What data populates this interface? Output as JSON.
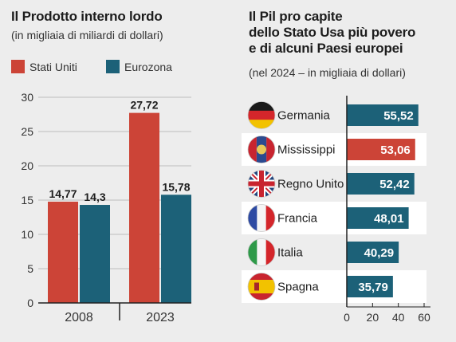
{
  "colors": {
    "usa": "#cc4437",
    "euro": "#1c6178",
    "background": "#ededed",
    "row_highlight": "#ffffff"
  },
  "chart_data": [
    {
      "type": "bar",
      "title": "Il Prodotto interno lordo",
      "subtitle": "(in migliaia di miliardi di dollari)",
      "categories": [
        "2008",
        "2023"
      ],
      "series": [
        {
          "name": "Stati Uniti",
          "values": [
            14.77,
            27.72
          ],
          "labels": [
            "14,77",
            "27,72"
          ]
        },
        {
          "name": "Eurozona",
          "values": [
            14.3,
            15.78
          ],
          "labels": [
            "14,3",
            "15,78"
          ]
        }
      ],
      "yticks": [
        "0",
        "5",
        "10",
        "15",
        "20",
        "25",
        "30"
      ],
      "ylim": [
        0,
        30
      ],
      "grid": true
    },
    {
      "type": "bar",
      "orientation": "horizontal",
      "title_lines": [
        "Il Pil pro capite",
        "dello Stato Usa più povero",
        "e di alcuni Paesi europei"
      ],
      "subtitle": "(nel 2024 – in migliaia di dollari)",
      "categories": [
        "Germania",
        "Mississippi",
        "Regno Unito",
        "Francia",
        "Italia",
        "Spagna"
      ],
      "flags": [
        "germany-flag-icon",
        "mississippi-flag-icon",
        "uk-flag-icon",
        "france-flag-icon",
        "italy-flag-icon",
        "spain-flag-icon"
      ],
      "values": [
        55.52,
        53.06,
        52.42,
        48.01,
        40.29,
        35.79
      ],
      "labels": [
        "55,52",
        "53,06",
        "52,42",
        "48,01",
        "40,29",
        "35,79"
      ],
      "highlight": "Mississippi",
      "xticks": [
        "0",
        "20",
        "40",
        "60"
      ],
      "xlim": [
        0,
        60
      ]
    }
  ]
}
